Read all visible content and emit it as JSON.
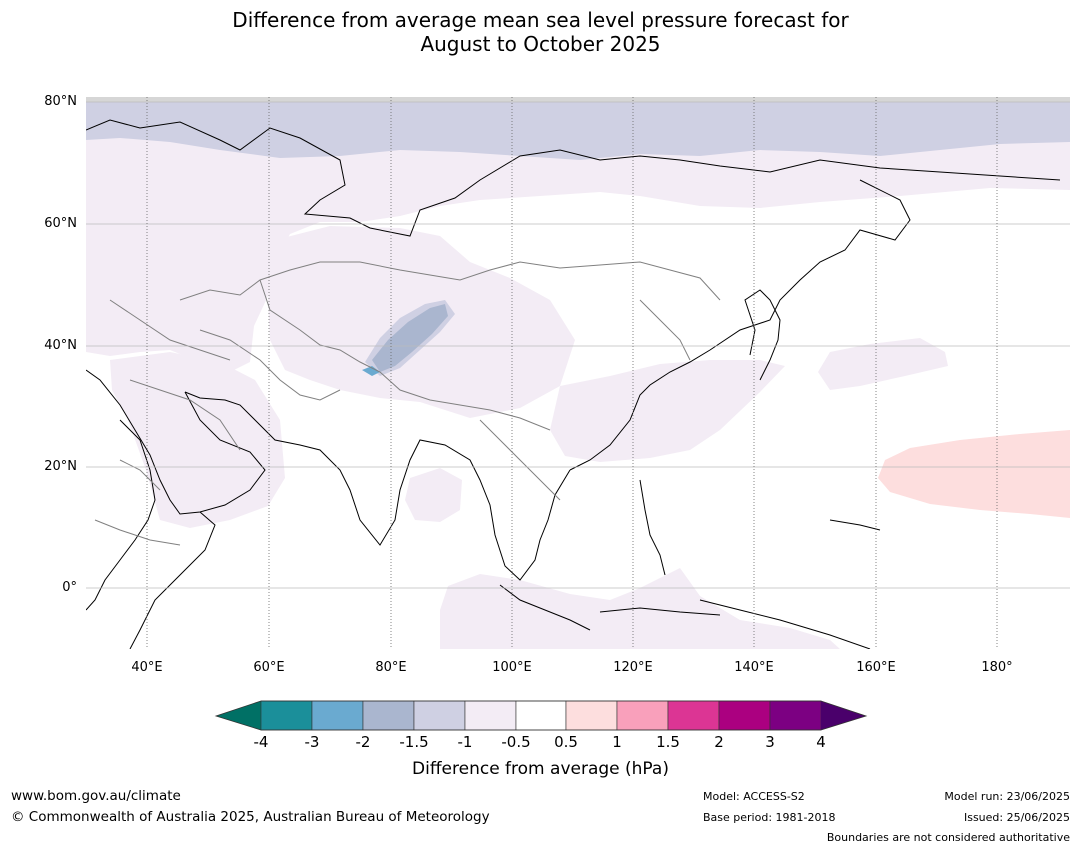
{
  "header": {
    "title_line1": "Difference from average mean sea level pressure forecast for",
    "title_line2": "August to October 2025"
  },
  "map": {
    "lat_labels": [
      "80°N",
      "60°N",
      "40°N",
      "20°N",
      "0°"
    ],
    "lon_labels": [
      "40°E",
      "60°E",
      "80°E",
      "100°E",
      "120°E",
      "140°E",
      "160°E",
      "180°"
    ],
    "extent": {
      "lon_min": 30,
      "lon_max": 190,
      "lat_min": -10,
      "lat_max": 81
    }
  },
  "colorbar": {
    "ticks": [
      "-4",
      "-3",
      "-2",
      "-1.5",
      "-1",
      "-0.5",
      "0.5",
      "1",
      "1.5",
      "2",
      "3",
      "4"
    ],
    "colors": [
      "#007065",
      "#1b8f9a",
      "#6aaad0",
      "#aab6cf",
      "#cfd0e3",
      "#f3ecf5",
      "#ffffff",
      "#fddede",
      "#f9a0bb",
      "#dc3594",
      "#ab0080",
      "#7c0082",
      "#4a006b"
    ],
    "label": "Difference from average (hPa)"
  },
  "footer": {
    "url": "www.bom.gov.au/climate",
    "copyright": "© Commonwealth of Australia 2025, Australian Bureau of Meteorology",
    "model": "Model: ACCESS-S2",
    "base_period": "Base period: 1981-2018",
    "model_run": "Model run: 23/06/2025",
    "issued": "Issued: 25/06/2025",
    "disclaimer": "Boundaries are not considered authoritative"
  }
}
